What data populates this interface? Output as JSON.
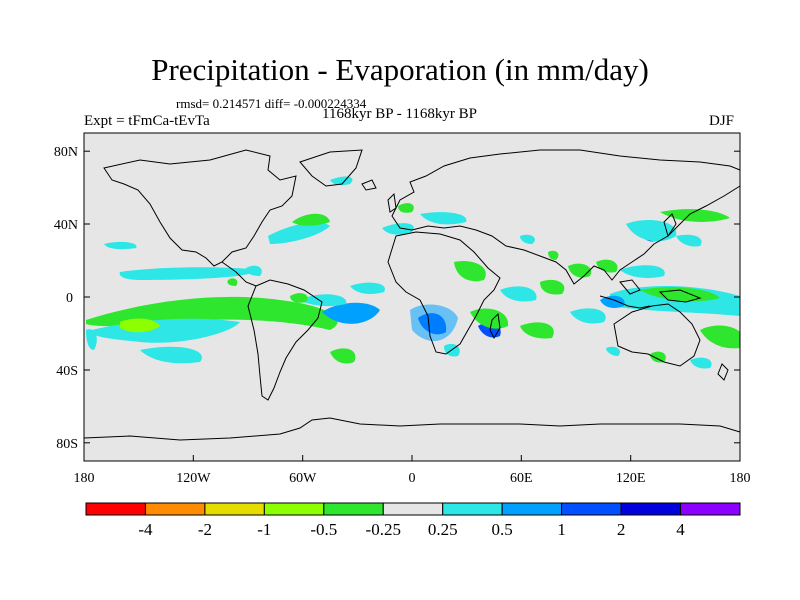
{
  "map": {
    "title": "Precipitation - Evaporation (in mm/day)",
    "stats": "rmsd= 0.214571 diff= -0.000224334",
    "period": "1168kyr BP - 1168kyr BP",
    "experiment": "Expt = tFmCa-tEvTa",
    "season": "DJF",
    "lat_ticks": [
      "80N",
      "40N",
      "0",
      "40S",
      "80S"
    ],
    "lon_ticks": [
      "180",
      "120W",
      "60W",
      "0",
      "60E",
      "120E",
      "180"
    ],
    "background_color": "#e6e6e6"
  },
  "colorbar": {
    "labels": [
      "-4",
      "-2",
      "-1",
      "-0.5",
      "-0.25",
      "0.25",
      "0.5",
      "1",
      "2",
      "4"
    ],
    "colors": [
      "#ff0000",
      "#ff8c00",
      "#e6dc00",
      "#8cff00",
      "#2ee62e",
      "#e6e6e6",
      "#2ee6e6",
      "#00a0ff",
      "#0050ff",
      "#0000dc",
      "#8c00ff"
    ]
  }
}
